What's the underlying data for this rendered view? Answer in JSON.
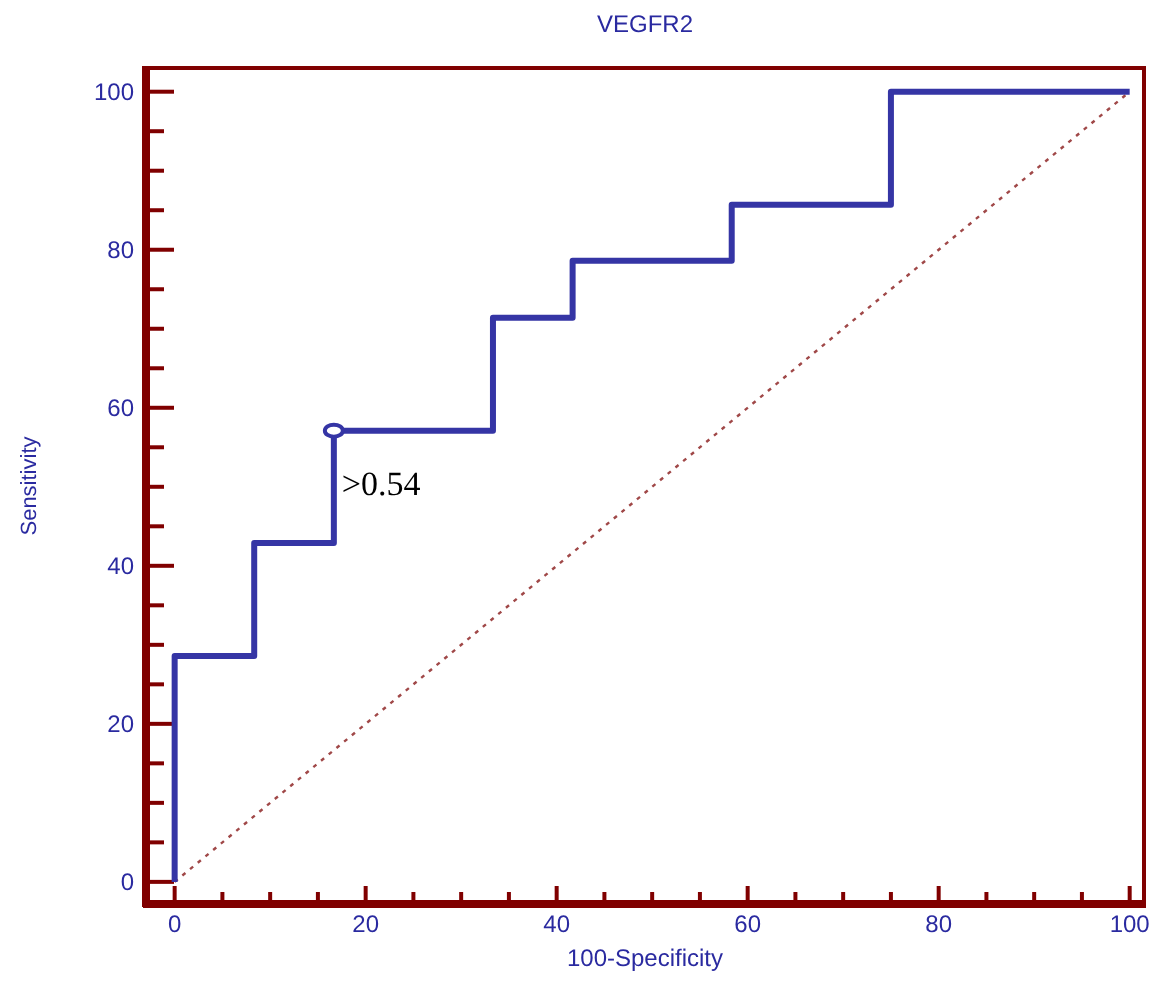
{
  "chart_data": {
    "type": "step",
    "title": "VEGFR2",
    "xlabel": "100-Specificity",
    "ylabel": "Sensitivity",
    "xlim": [
      -3,
      101.5
    ],
    "ylim": [
      -2.8,
      103
    ],
    "xticks": [
      0,
      {
        "value": 5,
        "label": null
      },
      {
        "value": 10,
        "label": null
      },
      {
        "value": 15,
        "label": null
      },
      20,
      {
        "value": 25,
        "label": null
      },
      {
        "value": 30,
        "label": null
      },
      {
        "value": 35,
        "label": null
      },
      40,
      {
        "value": 45,
        "label": null
      },
      {
        "value": 50,
        "label": null
      },
      {
        "value": 55,
        "label": null
      },
      60,
      {
        "value": 65,
        "label": null
      },
      {
        "value": 70,
        "label": null
      },
      {
        "value": 75,
        "label": null
      },
      80,
      {
        "value": 85,
        "label": null
      },
      {
        "value": 90,
        "label": null
      },
      {
        "value": 95,
        "label": null
      },
      100
    ],
    "yticks": [
      0,
      {
        "value": 5,
        "label": null
      },
      {
        "value": 10,
        "label": null
      },
      {
        "value": 15,
        "label": null
      },
      20,
      {
        "value": 25,
        "label": null
      },
      {
        "value": 30,
        "label": null
      },
      {
        "value": 35,
        "label": null
      },
      40,
      {
        "value": 45,
        "label": null
      },
      {
        "value": 50,
        "label": null
      },
      {
        "value": 55,
        "label": null
      },
      60,
      {
        "value": 65,
        "label": null
      },
      {
        "value": 70,
        "label": null
      },
      {
        "value": 75,
        "label": null
      },
      80,
      {
        "value": 85,
        "label": null
      },
      {
        "value": 90,
        "label": null
      },
      {
        "value": 95,
        "label": null
      },
      100
    ],
    "grid": false,
    "marker": "none",
    "series": [
      {
        "color": "#3535a5",
        "line_style": "solid",
        "x": [
          0,
          0,
          8.33,
          16.67,
          33.33,
          41.67,
          58.33,
          75,
          100
        ],
        "values": [
          0,
          28.6,
          42.9,
          57.1,
          71.4,
          78.6,
          85.7,
          100,
          100
        ]
      },
      {
        "type": "line",
        "color": "#a04848",
        "line_style": "dotted",
        "x": [
          0,
          100
        ],
        "values": [
          0,
          100
        ]
      }
    ],
    "annotations": [
      {
        "text": ">0.54",
        "x": 16.67,
        "y": 57.1
      }
    ]
  }
}
